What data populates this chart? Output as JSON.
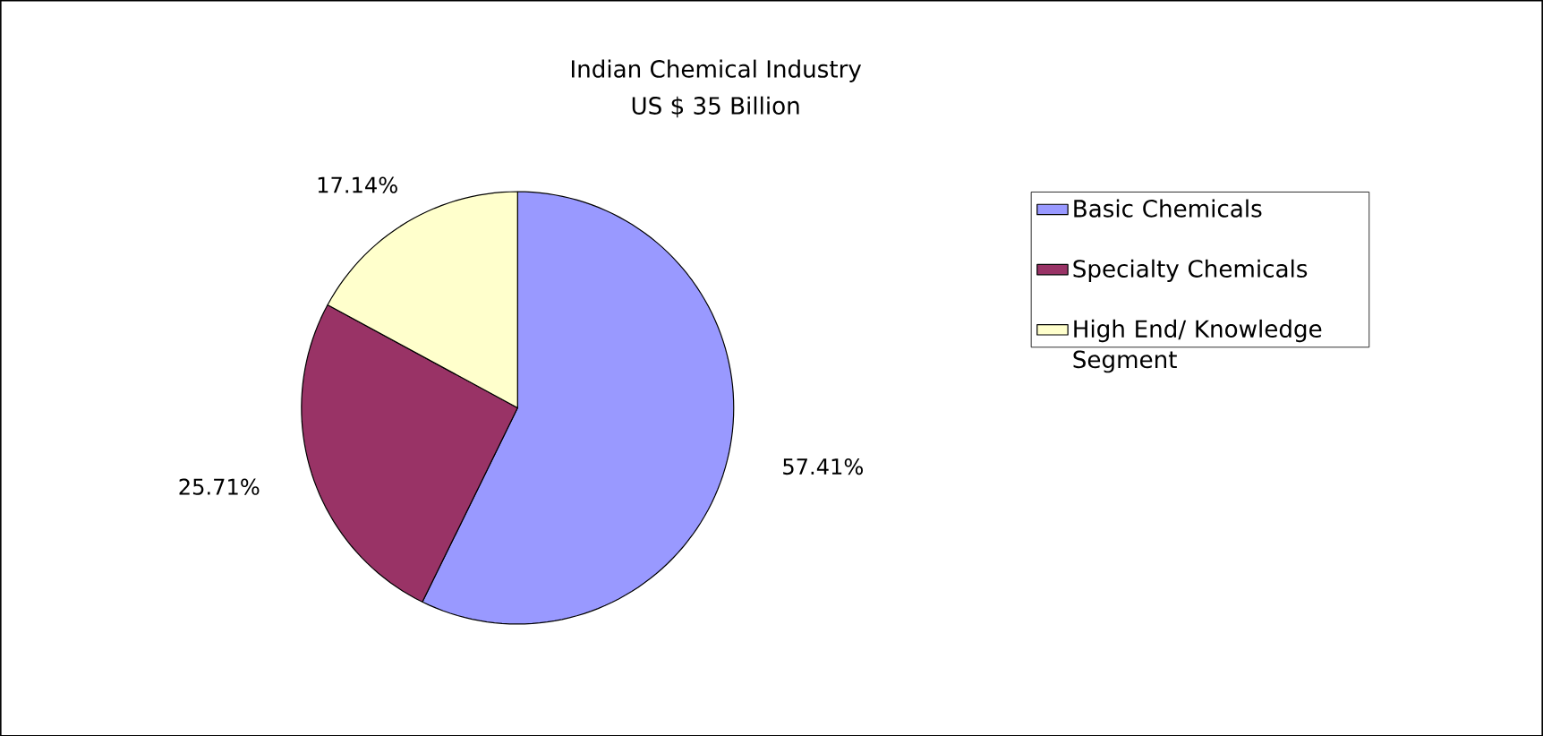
{
  "chart_data": {
    "type": "pie",
    "title": "Indian Chemical Industry",
    "subtitle": "US $ 35 Billion",
    "categories": [
      "Basic Chemicals",
      "Specialty Chemicals",
      "High End/ Knowledge Segment"
    ],
    "values": [
      57.41,
      25.71,
      17.14
    ],
    "colors": [
      "#9999ff",
      "#993366",
      "#ffffcc"
    ],
    "value_labels": [
      "57.41%",
      "25.71%",
      "17.14%"
    ],
    "legend": "right"
  }
}
